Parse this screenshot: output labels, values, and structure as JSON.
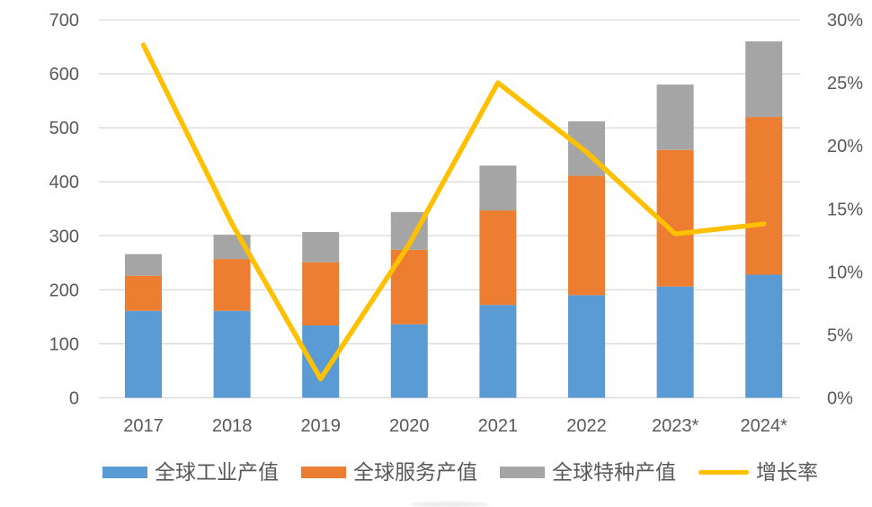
{
  "chart_data": {
    "type": "combo-stacked-bar-line",
    "title": "",
    "categories": [
      "2017",
      "2018",
      "2019",
      "2020",
      "2021",
      "2022",
      "2023*",
      "2024*"
    ],
    "series": [
      {
        "name": "全球工业产值",
        "color": "#5B9BD5",
        "values": [
          161,
          161,
          134,
          136,
          172,
          190,
          206,
          228
        ]
      },
      {
        "name": "全球服务产值",
        "color": "#ED7D31",
        "values": [
          65,
          96,
          117,
          138,
          175,
          221,
          253,
          292
        ]
      },
      {
        "name": "全球特种产值",
        "color": "#A5A5A5",
        "values": [
          40,
          45,
          56,
          70,
          83,
          101,
          121,
          140
        ]
      }
    ],
    "stack_totals": [
      266,
      302,
      307,
      344,
      430,
      512,
      580,
      660
    ],
    "line_series": {
      "name": "增长率",
      "color": "#FFC000",
      "axis": "right",
      "values_percent": [
        28,
        13.8,
        1.5,
        12.2,
        25,
        19.5,
        13,
        13.8
      ]
    },
    "left_axis": {
      "min": 0,
      "max": 700,
      "step": 100,
      "ticks": [
        "700",
        "600",
        "500",
        "400",
        "300",
        "200",
        "100",
        "0"
      ]
    },
    "right_axis": {
      "min": 0,
      "max": 30,
      "step": 5,
      "unit": "%",
      "ticks": [
        "30%",
        "25%",
        "20%",
        "15%",
        "10%",
        "5%",
        "0%"
      ]
    },
    "grid": true,
    "legend_position": "bottom"
  },
  "colors": {
    "background": "#FFFFFF",
    "gridline": "#D9D9D9",
    "axis_text": "#595959"
  }
}
